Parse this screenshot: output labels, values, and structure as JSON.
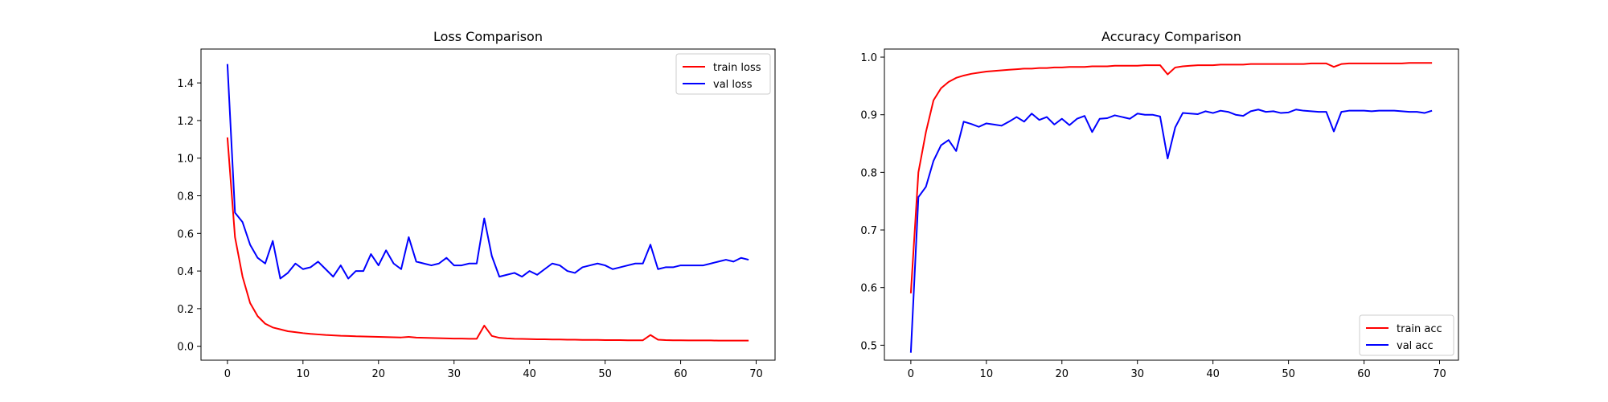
{
  "colors": {
    "train": "#ff0000",
    "val": "#0000ff",
    "axes": "#000000",
    "legend_border": "#cccccc"
  },
  "chart_data": [
    {
      "type": "line",
      "title": "Loss Comparison",
      "xlabel": "",
      "ylabel": "",
      "xlim": [
        -3.5,
        72.5
      ],
      "ylim": [
        -0.074,
        1.58
      ],
      "xticks": [
        0,
        10,
        20,
        30,
        40,
        50,
        60,
        70
      ],
      "yticks": [
        0.0,
        0.2,
        0.4,
        0.6,
        0.8,
        1.0,
        1.2,
        1.4
      ],
      "ytick_decimals": 1,
      "grid": false,
      "legend_position": "top-right",
      "x": [
        0,
        1,
        2,
        3,
        4,
        5,
        6,
        7,
        8,
        9,
        10,
        11,
        12,
        13,
        14,
        15,
        16,
        17,
        18,
        19,
        20,
        21,
        22,
        23,
        24,
        25,
        26,
        27,
        28,
        29,
        30,
        31,
        32,
        33,
        34,
        35,
        36,
        37,
        38,
        39,
        40,
        41,
        42,
        43,
        44,
        45,
        46,
        47,
        48,
        49,
        50,
        51,
        52,
        53,
        54,
        55,
        56,
        57,
        58,
        59,
        60,
        61,
        62,
        63,
        64,
        65,
        66,
        67,
        68,
        69
      ],
      "series": [
        {
          "name": "train loss",
          "color": "#ff0000",
          "values": [
            1.11,
            0.58,
            0.37,
            0.23,
            0.16,
            0.12,
            0.1,
            0.09,
            0.08,
            0.075,
            0.07,
            0.066,
            0.063,
            0.06,
            0.058,
            0.056,
            0.055,
            0.053,
            0.052,
            0.051,
            0.05,
            0.049,
            0.048,
            0.047,
            0.05,
            0.046,
            0.045,
            0.044,
            0.043,
            0.042,
            0.041,
            0.041,
            0.04,
            0.04,
            0.11,
            0.055,
            0.045,
            0.042,
            0.04,
            0.039,
            0.038,
            0.037,
            0.037,
            0.036,
            0.036,
            0.035,
            0.035,
            0.034,
            0.034,
            0.034,
            0.033,
            0.033,
            0.033,
            0.032,
            0.032,
            0.032,
            0.06,
            0.035,
            0.033,
            0.032,
            0.032,
            0.031,
            0.031,
            0.031,
            0.031,
            0.03,
            0.03,
            0.03,
            0.03,
            0.03
          ]
        },
        {
          "name": "val loss",
          "color": "#0000ff",
          "values": [
            1.5,
            0.71,
            0.66,
            0.54,
            0.47,
            0.44,
            0.56,
            0.36,
            0.39,
            0.44,
            0.41,
            0.42,
            0.45,
            0.41,
            0.37,
            0.43,
            0.36,
            0.4,
            0.4,
            0.49,
            0.43,
            0.51,
            0.44,
            0.41,
            0.58,
            0.45,
            0.44,
            0.43,
            0.44,
            0.47,
            0.43,
            0.43,
            0.44,
            0.44,
            0.68,
            0.48,
            0.37,
            0.38,
            0.39,
            0.37,
            0.4,
            0.38,
            0.41,
            0.44,
            0.43,
            0.4,
            0.39,
            0.42,
            0.43,
            0.44,
            0.43,
            0.41,
            0.42,
            0.43,
            0.44,
            0.44,
            0.54,
            0.41,
            0.42,
            0.42,
            0.43,
            0.43,
            0.43,
            0.43,
            0.44,
            0.45,
            0.46,
            0.45,
            0.47,
            0.46
          ]
        }
      ]
    },
    {
      "type": "line",
      "title": "Accuracy Comparison",
      "xlabel": "",
      "ylabel": "",
      "xlim": [
        -3.5,
        72.5
      ],
      "ylim": [
        0.474,
        1.014
      ],
      "xticks": [
        0,
        10,
        20,
        30,
        40,
        50,
        60,
        70
      ],
      "yticks": [
        0.5,
        0.6,
        0.7,
        0.8,
        0.9,
        1.0
      ],
      "ytick_decimals": 1,
      "grid": false,
      "legend_position": "bottom-right",
      "x": [
        0,
        1,
        2,
        3,
        4,
        5,
        6,
        7,
        8,
        9,
        10,
        11,
        12,
        13,
        14,
        15,
        16,
        17,
        18,
        19,
        20,
        21,
        22,
        23,
        24,
        25,
        26,
        27,
        28,
        29,
        30,
        31,
        32,
        33,
        34,
        35,
        36,
        37,
        38,
        39,
        40,
        41,
        42,
        43,
        44,
        45,
        46,
        47,
        48,
        49,
        50,
        51,
        52,
        53,
        54,
        55,
        56,
        57,
        58,
        59,
        60,
        61,
        62,
        63,
        64,
        65,
        66,
        67,
        68,
        69
      ],
      "series": [
        {
          "name": "train acc",
          "color": "#ff0000",
          "values": [
            0.59,
            0.8,
            0.87,
            0.925,
            0.946,
            0.957,
            0.964,
            0.968,
            0.971,
            0.973,
            0.975,
            0.976,
            0.977,
            0.978,
            0.979,
            0.98,
            0.98,
            0.981,
            0.981,
            0.982,
            0.982,
            0.983,
            0.983,
            0.983,
            0.984,
            0.984,
            0.984,
            0.985,
            0.985,
            0.985,
            0.985,
            0.986,
            0.986,
            0.986,
            0.97,
            0.982,
            0.984,
            0.985,
            0.986,
            0.986,
            0.986,
            0.987,
            0.987,
            0.987,
            0.987,
            0.988,
            0.988,
            0.988,
            0.988,
            0.988,
            0.988,
            0.988,
            0.988,
            0.989,
            0.989,
            0.989,
            0.983,
            0.988,
            0.989,
            0.989,
            0.989,
            0.989,
            0.989,
            0.989,
            0.989,
            0.989,
            0.99,
            0.99,
            0.99,
            0.99
          ]
        },
        {
          "name": "val acc",
          "color": "#0000ff",
          "values": [
            0.487,
            0.757,
            0.775,
            0.82,
            0.847,
            0.856,
            0.837,
            0.888,
            0.884,
            0.879,
            0.885,
            0.883,
            0.881,
            0.888,
            0.896,
            0.888,
            0.902,
            0.891,
            0.896,
            0.883,
            0.893,
            0.882,
            0.893,
            0.898,
            0.87,
            0.893,
            0.894,
            0.899,
            0.896,
            0.893,
            0.902,
            0.9,
            0.9,
            0.897,
            0.824,
            0.878,
            0.903,
            0.902,
            0.901,
            0.906,
            0.903,
            0.907,
            0.905,
            0.9,
            0.898,
            0.906,
            0.909,
            0.905,
            0.906,
            0.903,
            0.904,
            0.909,
            0.907,
            0.906,
            0.905,
            0.905,
            0.871,
            0.905,
            0.907,
            0.907,
            0.907,
            0.906,
            0.907,
            0.907,
            0.907,
            0.906,
            0.905,
            0.905,
            0.903,
            0.907
          ]
        }
      ]
    }
  ]
}
